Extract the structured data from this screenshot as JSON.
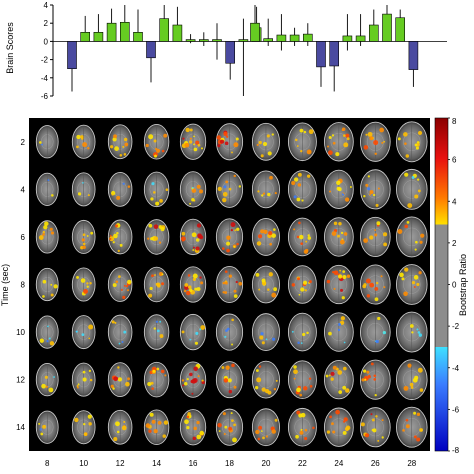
{
  "chart_data": [
    {
      "type": "bar",
      "ylabel": "Brain Scores",
      "ylim": [
        -6,
        4
      ],
      "yticks": [
        4,
        2,
        0,
        -2,
        -4,
        -6
      ],
      "colors": {
        "positive": "#66cc22",
        "negative": "#4a4aa0",
        "whisker": "#000000"
      },
      "groups": [
        {
          "values": [
            -3.0,
            1.0,
            1.0,
            2.0,
            2.1,
            1.0
          ],
          "lower": [
            -5.5,
            0,
            0,
            0,
            0,
            0
          ],
          "upper": [
            0,
            2.8,
            3.0,
            3.6,
            4.0,
            3.5
          ]
        },
        {
          "values": [
            -1.8,
            2.5,
            1.8,
            0.2,
            0.2,
            0.2,
            -2.4,
            0.2,
            1.5
          ],
          "lower": [
            -4.5,
            0,
            0,
            -0.2,
            -0.5,
            -2.0,
            -4.2,
            -6.0,
            0
          ],
          "upper": [
            0,
            4.0,
            3.8,
            0.8,
            1.0,
            2.0,
            0,
            2.5,
            3.8
          ]
        },
        {
          "values": [
            2.0,
            0.3,
            0.7,
            0.7,
            0.8,
            -2.8,
            -2.7,
            0.6,
            0.6,
            1.8,
            3.0,
            2.6,
            -3.1
          ],
          "lower": [
            0,
            -0.5,
            -1.0,
            -0.5,
            -0.5,
            -5.0,
            -5.5,
            -1.0,
            -0.5,
            0,
            0,
            0,
            -5.0
          ],
          "upper": [
            4.0,
            2.5,
            3.0,
            1.5,
            2.0,
            0,
            0,
            3.0,
            3.0,
            3.5,
            4.0,
            3.5,
            0
          ]
        }
      ]
    },
    {
      "type": "heatmap",
      "xlabel": "",
      "ylabel": "Time (sec)",
      "rows": [
        "2",
        "4",
        "6",
        "8",
        "10",
        "12",
        "14"
      ],
      "columns": [
        "8",
        "10",
        "12",
        "14",
        "16",
        "18",
        "20",
        "22",
        "24",
        "26",
        "28"
      ],
      "colorbar": {
        "label": "Bootstrap Ratio",
        "range": [
          -8,
          8
        ],
        "ticks": [
          8,
          6,
          4,
          2,
          0,
          -2,
          -4,
          -6,
          -8
        ],
        "threshold": 3
      },
      "activation": [
        [
          0.05,
          0.35,
          0.55,
          0.55,
          0.85,
          0.75,
          0.45,
          0.5,
          0.75,
          0.6,
          0.55
        ],
        [
          0.05,
          0.1,
          0.25,
          0.3,
          0.45,
          0.45,
          0.4,
          0.45,
          0.5,
          0.5,
          0.35
        ],
        [
          0.45,
          0.45,
          0.6,
          0.65,
          0.95,
          0.7,
          0.55,
          0.6,
          0.55,
          0.5,
          0.45
        ],
        [
          0.3,
          0.45,
          0.65,
          0.65,
          0.9,
          0.7,
          0.55,
          0.6,
          0.8,
          0.65,
          0.55
        ],
        [
          0.15,
          0.1,
          0.1,
          0.15,
          0.2,
          0.15,
          0.1,
          0.1,
          0.2,
          0.15,
          0.15
        ],
        [
          0.25,
          0.45,
          0.65,
          0.6,
          0.85,
          0.65,
          0.55,
          0.6,
          0.7,
          0.6,
          0.5
        ],
        [
          0.2,
          0.35,
          0.4,
          0.55,
          0.75,
          0.7,
          0.55,
          0.55,
          0.65,
          0.7,
          0.55
        ]
      ]
    }
  ]
}
